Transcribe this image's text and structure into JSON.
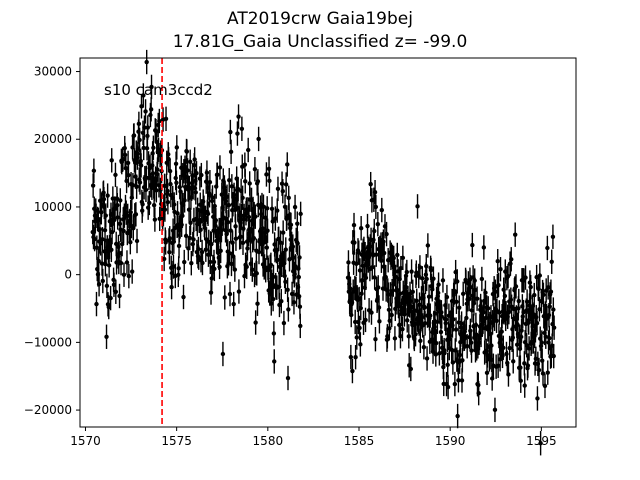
{
  "chart_data": {
    "type": "scatter",
    "title": "AT2019crw  Gaia19bej",
    "subtitle": "17.81G_Gaia Unclassified z= -99.0",
    "xlabel": "",
    "ylabel": "",
    "xlim": [
      1569.7,
      1596.9
    ],
    "ylim": [
      -22500,
      32000
    ],
    "x_ticks": [
      1570,
      1575,
      1580,
      1585,
      1590,
      1595
    ],
    "y_ticks": [
      -20000,
      -10000,
      0,
      10000,
      20000,
      30000
    ],
    "x_tick_labels": [
      "1570",
      "1575",
      "1580",
      "1585",
      "1590",
      "1595"
    ],
    "y_tick_labels": [
      "−20000",
      "−10000",
      "0",
      "10000",
      "20000",
      "30000"
    ],
    "grid": false,
    "annotation": "s10 cam3ccd2",
    "vline": {
      "x": 1574.2,
      "color": "#ff0000",
      "style": "dashed"
    },
    "marker_color": "#000000",
    "series": [
      {
        "segments": [
          {
            "x_start": 1570.4,
            "x_end": 1581.8,
            "anchors_x": [
              1570.4,
              1571.0,
              1571.6,
              1572.2,
              1572.8,
              1573.3,
              1573.8,
              1574.3,
              1574.8,
              1575.3,
              1575.8,
              1576.3,
              1576.8,
              1577.3,
              1577.8,
              1578.3,
              1578.8,
              1579.3,
              1579.8,
              1580.3,
              1580.8,
              1581.3,
              1581.8
            ],
            "anchors_y": [
              8000,
              5000,
              6000,
              10000,
              13000,
              18000,
              15000,
              12000,
              8000,
              9000,
              11000,
              8000,
              10000,
              6000,
              9000,
              8000,
              10000,
              4000,
              6000,
              3000,
              4000,
              3000,
              2000
            ],
            "scatter": 5500,
            "n_points": 560
          },
          {
            "x_start": 1584.4,
            "x_end": 1595.7,
            "anchors_x": [
              1584.4,
              1585.0,
              1585.6,
              1586.2,
              1586.8,
              1587.4,
              1588.0,
              1588.6,
              1589.2,
              1589.8,
              1590.4,
              1591.0,
              1591.6,
              1592.2,
              1592.8,
              1593.4,
              1594.0,
              1594.6,
              1595.2,
              1595.7
            ],
            "anchors_y": [
              -2000,
              -3000,
              3000,
              1000,
              -2000,
              -3000,
              -5000,
              -4000,
              -8000,
              -10000,
              -9000,
              -7000,
              -6000,
              -8000,
              -6000,
              -4000,
              -7000,
              -8000,
              -6000,
              -9000
            ],
            "scatter": 4500,
            "n_points": 520
          }
        ],
        "error_bar": 1800
      }
    ]
  }
}
